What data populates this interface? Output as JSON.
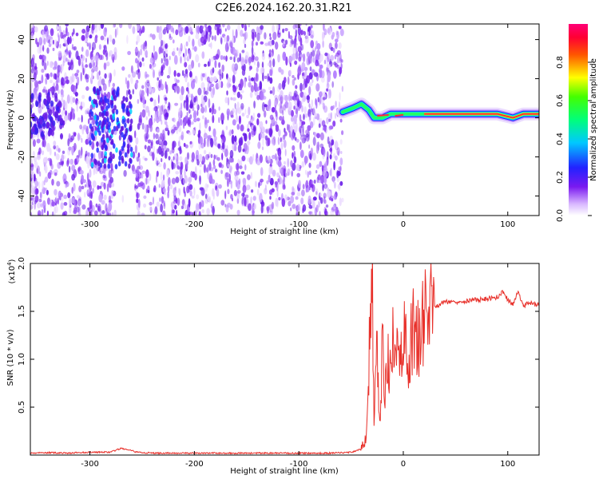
{
  "title": "C2E6.2024.162.20.31.R21",
  "colors": {
    "background": "#ffffff",
    "axis": "#000000",
    "snr_line": "#e8302a",
    "noise_point": "#6a1ee8"
  },
  "chart_data": [
    {
      "type": "heatmap",
      "xlabel": "Height of straight line (km)",
      "ylabel": "Frequency (Hz)",
      "xlim": [
        -357,
        130
      ],
      "ylim": [
        -50,
        48
      ],
      "xticks": [
        -300,
        -200,
        -100,
        0,
        100
      ],
      "yticks": [
        -40,
        -20,
        0,
        20,
        40
      ],
      "colorbar": {
        "label": "Normalized spectral amplitude",
        "range": [
          0,
          1
        ],
        "ticks": [
          "0.0",
          "0.2",
          "0.4",
          "0.6",
          "0.8"
        ],
        "colormap": "rainbow (white/violet -> blue -> cyan -> green -> yellow -> red -> magenta)"
      },
      "features": {
        "broadband_noise_x": [
          -357,
          -58
        ],
        "low_density_gap_x": [
          -270,
          -262
        ],
        "wide_scatter_blob": {
          "x": [
            -300,
            -260
          ],
          "y": [
            -25,
            15
          ]
        },
        "echo_trace": [
          {
            "x": -58,
            "y": 3
          },
          {
            "x": -48,
            "y": 5
          },
          {
            "x": -40,
            "y": 7
          },
          {
            "x": -33,
            "y": 4
          },
          {
            "x": -28,
            "y": 0
          },
          {
            "x": -20,
            "y": 0
          },
          {
            "x": -12,
            "y": 2
          },
          {
            "x": 0,
            "y": 2
          },
          {
            "x": 20,
            "y": 2
          },
          {
            "x": 60,
            "y": 2
          },
          {
            "x": 90,
            "y": 2
          },
          {
            "x": 105,
            "y": 0
          },
          {
            "x": 115,
            "y": 2
          },
          {
            "x": 130,
            "y": 2
          }
        ],
        "peak_amplitude_x": [
          20,
          130
        ]
      }
    },
    {
      "type": "line",
      "xlabel": "Height of straight line (km)",
      "ylabel": "SNR (10 * v/v)",
      "y_scale_label": "(x10",
      "y_scale_exponent": "4",
      "y_scale_suffix": ")",
      "xlim": [
        -357,
        130
      ],
      "ylim": [
        0,
        2.0
      ],
      "xticks": [
        -300,
        -200,
        -100,
        0,
        100
      ],
      "yticks": [
        "0.5",
        "1.0",
        "1.5",
        "2.0"
      ],
      "series": [
        {
          "x": [
            -357,
            -340,
            -320,
            -300,
            -280,
            -270,
            -262,
            -255,
            -240,
            -200,
            -150,
            -100,
            -70,
            -50,
            -40,
            -36,
            -34,
            -32,
            -30,
            -28,
            -25,
            -22,
            -20,
            -18,
            -15,
            -12,
            -10,
            -8,
            -5,
            -3,
            0,
            5,
            10,
            15,
            20,
            25,
            30,
            40,
            50,
            60,
            70,
            80,
            90,
            95,
            100,
            105,
            110,
            115,
            120,
            125,
            130
          ],
          "y": [
            0.02,
            0.025,
            0.02,
            0.03,
            0.03,
            0.07,
            0.05,
            0.03,
            0.02,
            0.02,
            0.02,
            0.02,
            0.02,
            0.03,
            0.06,
            0.15,
            0.6,
            1.3,
            2.0,
            0.4,
            1.1,
            0.3,
            1.25,
            0.5,
            1.0,
            0.8,
            1.15,
            0.9,
            1.2,
            1.1,
            1.25,
            1.0,
            1.35,
            1.2,
            1.45,
            1.5,
            1.55,
            1.6,
            1.6,
            1.61,
            1.62,
            1.63,
            1.65,
            1.7,
            1.62,
            1.58,
            1.7,
            1.55,
            1.6,
            1.57,
            1.58
          ]
        }
      ]
    }
  ]
}
